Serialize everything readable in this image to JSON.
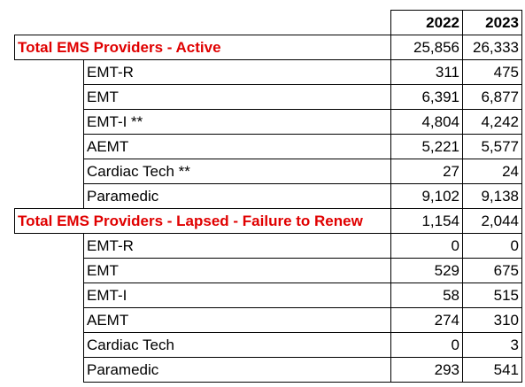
{
  "header": {
    "years": [
      "2022",
      "2023"
    ]
  },
  "sections": [
    {
      "title": "Total EMS Providers - Active",
      "totals": [
        "25,856",
        "26,333"
      ],
      "rows": [
        {
          "label": "EMT-R",
          "values": [
            "311",
            "475"
          ]
        },
        {
          "label": "EMT",
          "values": [
            "6,391",
            "6,877"
          ]
        },
        {
          "label": "EMT-I **",
          "values": [
            "4,804",
            "4,242"
          ]
        },
        {
          "label": "AEMT",
          "values": [
            "5,221",
            "5,577"
          ]
        },
        {
          "label": "Cardiac Tech **",
          "values": [
            "27",
            "24"
          ]
        },
        {
          "label": "Paramedic",
          "values": [
            "9,102",
            "9,138"
          ]
        }
      ]
    },
    {
      "title": "Total EMS Providers - Lapsed - Failure to Renew",
      "totals": [
        "1,154",
        "2,044"
      ],
      "rows": [
        {
          "label": "EMT-R",
          "values": [
            "0",
            "0"
          ]
        },
        {
          "label": "EMT",
          "values": [
            "529",
            "675"
          ]
        },
        {
          "label": "EMT-I",
          "values": [
            "58",
            "515"
          ]
        },
        {
          "label": "AEMT",
          "values": [
            "274",
            "310"
          ]
        },
        {
          "label": "Cardiac Tech",
          "values": [
            "0",
            "3"
          ]
        },
        {
          "label": "Paramedic",
          "values": [
            "293",
            "541"
          ]
        }
      ]
    }
  ],
  "colors": {
    "total_label": "#e00000",
    "border": "#000000"
  }
}
